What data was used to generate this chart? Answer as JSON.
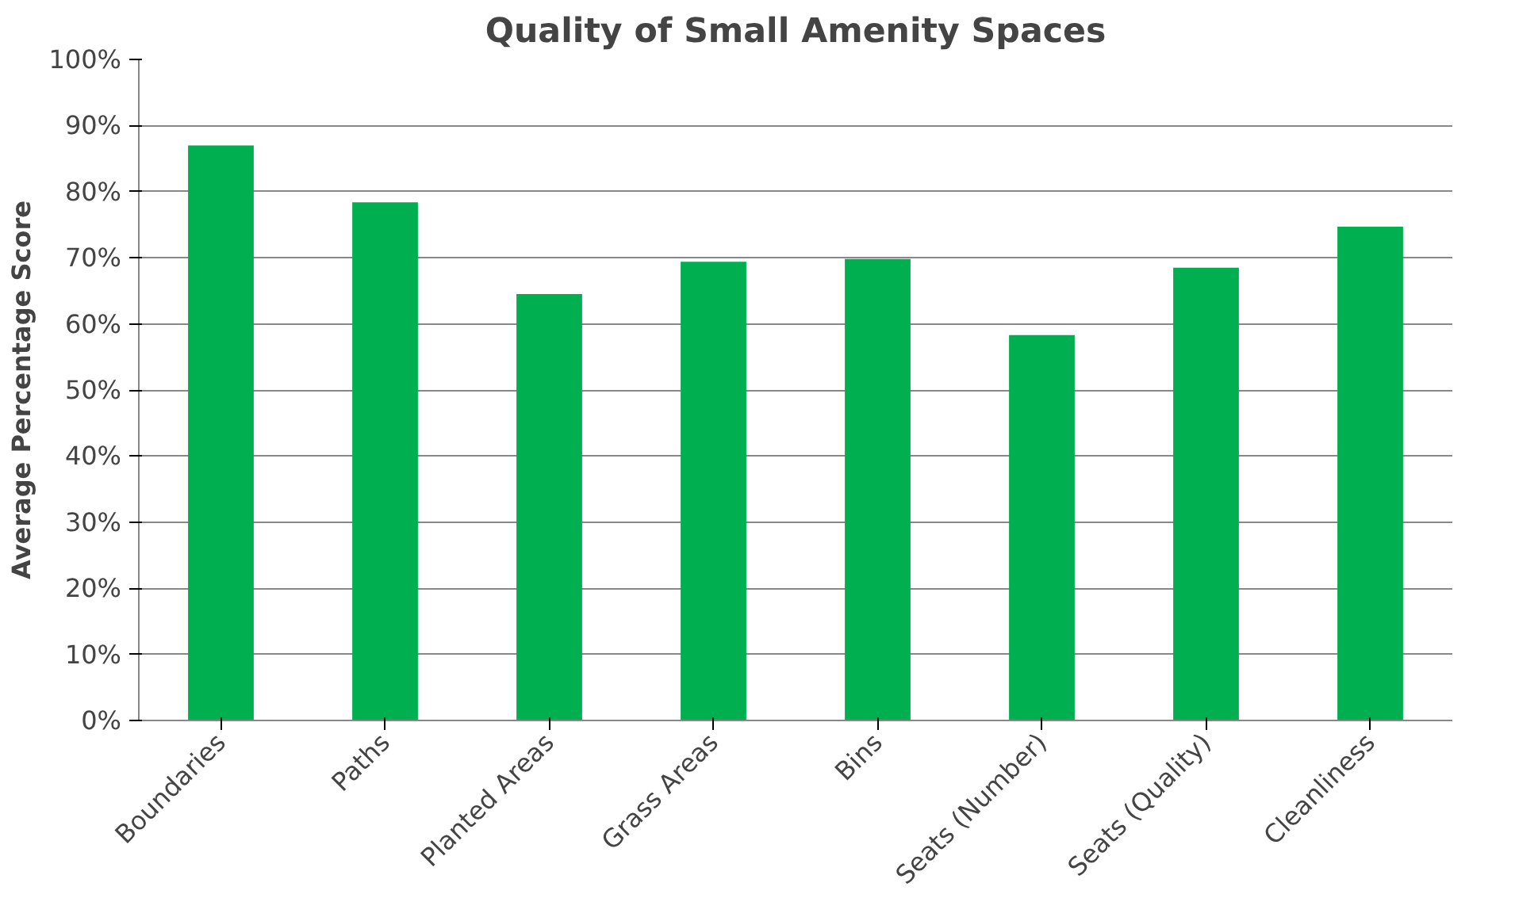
{
  "chart_data": {
    "type": "bar",
    "title": "Quality of Small Amenity Spaces",
    "ylabel": "Average Percentage Score",
    "categories": [
      "Boundaries",
      "Paths",
      "Planted Areas",
      "Grass Areas",
      "Bins",
      "Seats (Number)",
      "Seats (Quality)",
      "Cleanliness"
    ],
    "values": [
      87,
      78.4,
      64.5,
      69.4,
      69.8,
      58.3,
      68.5,
      74.7
    ],
    "color": "#00b050",
    "ylim": [
      0,
      100
    ],
    "yticks": [
      {
        "value": 0,
        "label": "0%"
      },
      {
        "value": 10,
        "label": "10%"
      },
      {
        "value": 20,
        "label": "20%"
      },
      {
        "value": 30,
        "label": "30%"
      },
      {
        "value": 40,
        "label": "40%"
      },
      {
        "value": 50,
        "label": "50%"
      },
      {
        "value": 60,
        "label": "60%"
      },
      {
        "value": 70,
        "label": "70%"
      },
      {
        "value": 80,
        "label": "80%"
      },
      {
        "value": 90,
        "label": "90%"
      },
      {
        "value": 100,
        "label": "100%"
      }
    ],
    "grid": "y"
  }
}
